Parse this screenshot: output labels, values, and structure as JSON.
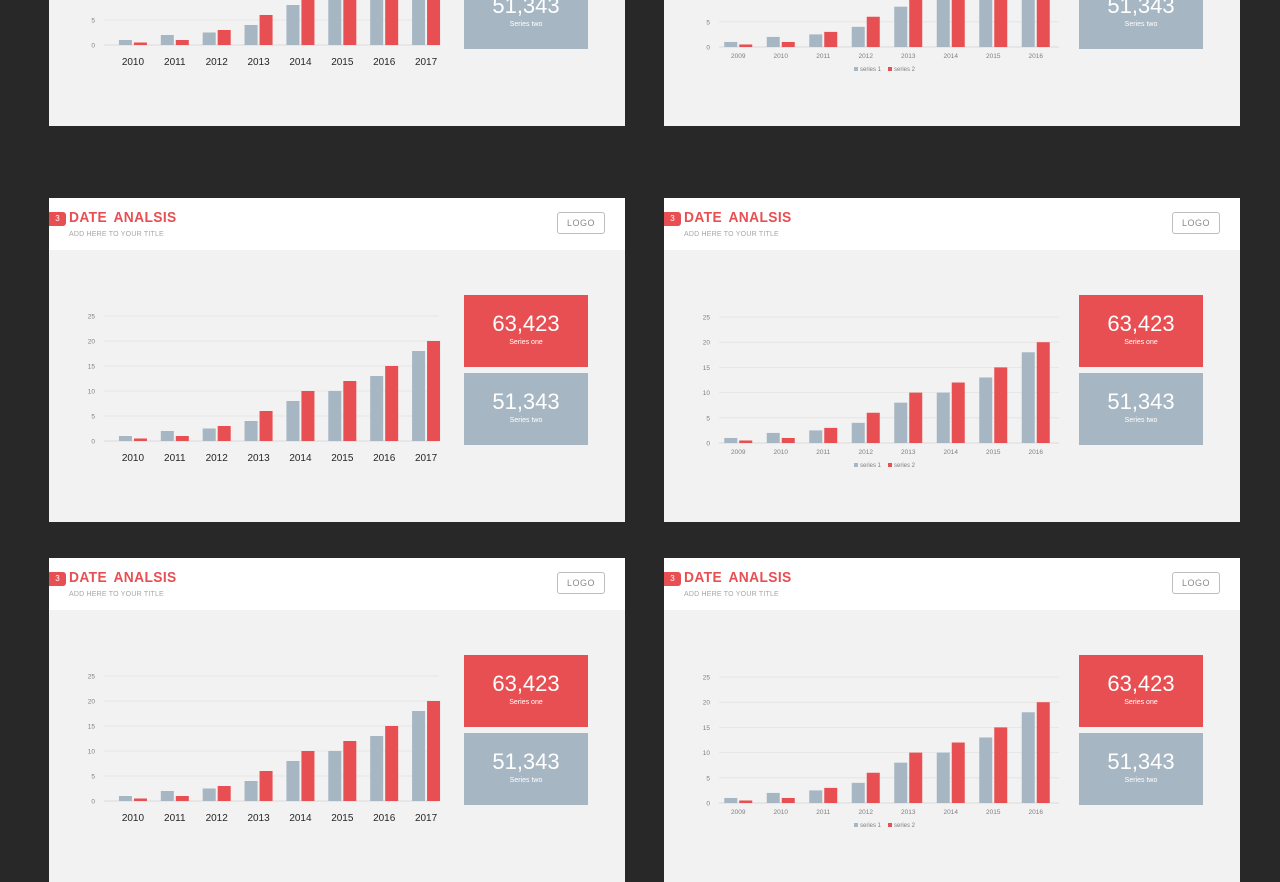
{
  "header": {
    "badge": "3",
    "title": "DATE  ANALSIS",
    "subtitle": "ADD HERE TO YOUR TITLE",
    "logo_label": "LOGO"
  },
  "stats": {
    "series_one": {
      "value": "63,423",
      "label": "Series one"
    },
    "series_two": {
      "value": "51,343",
      "label": "Series two"
    }
  },
  "colors": {
    "accent": "#e84f52",
    "series_gray": "#a6b6c3",
    "slide_bg": "#f2f2f2",
    "page_bg": "#282828"
  },
  "chart_data": [
    {
      "type": "bar",
      "variant": "A",
      "categories": [
        "2010",
        "2011",
        "2012",
        "2013",
        "2014",
        "2015",
        "2016",
        "2017"
      ],
      "series": [
        {
          "values": [
            1,
            2,
            2.5,
            4,
            8,
            10,
            13,
            18
          ]
        },
        {
          "values": [
            0.5,
            1,
            3,
            6,
            10,
            12,
            15,
            20
          ]
        }
      ],
      "y_ticks": [
        0,
        5,
        10,
        15,
        20,
        25
      ],
      "ylim": [
        0,
        25
      ],
      "legend": []
    },
    {
      "type": "bar",
      "variant": "B",
      "categories": [
        "2009",
        "2010",
        "2011",
        "2012",
        "2013",
        "2014",
        "2015",
        "2016"
      ],
      "series": [
        {
          "name": "series 1",
          "values": [
            1,
            2,
            2.5,
            4,
            8,
            10,
            13,
            18
          ]
        },
        {
          "name": "series 2",
          "values": [
            0.5,
            1,
            3,
            6,
            10,
            12,
            15,
            20
          ]
        }
      ],
      "y_ticks": [
        0,
        5,
        10,
        15,
        20,
        25
      ],
      "ylim": [
        0,
        25
      ],
      "legend": [
        "series 1",
        "series 2"
      ]
    }
  ]
}
